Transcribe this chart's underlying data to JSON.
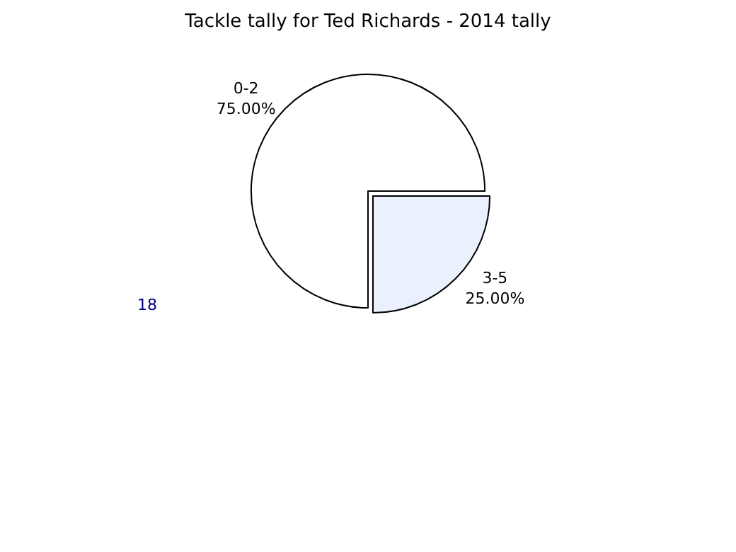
{
  "chart_data": {
    "type": "pie",
    "title": "Tackle tally for Ted Richards - 2014 tally",
    "categories": [
      "0-2",
      "3-5"
    ],
    "values": [
      75,
      25
    ],
    "colors": [
      "#ffffff",
      "#eaf0fd"
    ],
    "value_labels": [
      "75.00%",
      "25.00%"
    ],
    "annotations": [
      "18"
    ],
    "legend": false
  }
}
